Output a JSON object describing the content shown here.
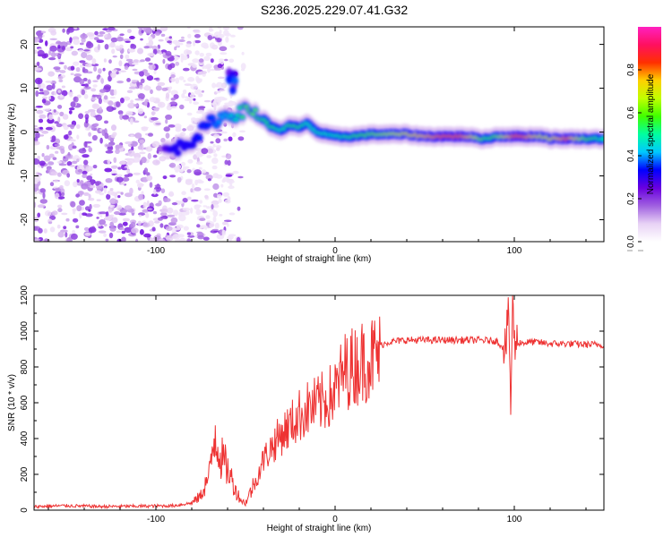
{
  "title": "S236.2025.229.07.41.G32",
  "chart_data": [
    {
      "type": "heatmap",
      "xlabel": "Height of straight line (km)",
      "ylabel": "Frequency (Hz)",
      "xlim": [
        -168,
        150
      ],
      "ylim": [
        -25,
        24
      ],
      "xticks": [
        -100,
        0,
        100
      ],
      "yticks": [
        -20,
        -10,
        0,
        10,
        20
      ],
      "ridge": {
        "x": [
          -95,
          -90,
          -85,
          -80,
          -75,
          -70,
          -65,
          -60,
          -55,
          -50,
          -45,
          -40,
          -35,
          -30,
          -25,
          -20,
          -15,
          -10,
          -5,
          0,
          10,
          20,
          30,
          40,
          50,
          60,
          70,
          75,
          80,
          85,
          90,
          95,
          100,
          105,
          110,
          115,
          120,
          130,
          140,
          150
        ],
        "y": [
          -4,
          -4,
          -3,
          -2,
          0,
          2,
          3,
          4,
          4,
          5,
          4.5,
          3,
          1,
          0.5,
          1.5,
          1,
          2,
          0,
          -0.5,
          -1,
          -1,
          -0.5,
          -0.5,
          -0.5,
          -1,
          -1,
          -1,
          -1,
          -1.5,
          -1.5,
          -1,
          -1,
          -1,
          -1,
          -1,
          -1,
          -1.5,
          -1.5,
          -1.5,
          -1.5
        ],
        "amplitude": [
          0.25,
          0.3,
          0.3,
          0.3,
          0.35,
          0.35,
          0.4,
          0.45,
          0.5,
          0.6,
          0.6,
          0.55,
          0.55,
          0.5,
          0.55,
          0.55,
          0.5,
          0.5,
          0.5,
          0.5,
          0.55,
          0.6,
          0.65,
          0.7,
          0.75,
          0.8,
          0.8,
          0.75,
          0.65,
          0.55,
          0.6,
          0.7,
          0.8,
          0.8,
          0.75,
          0.7,
          0.7,
          0.8,
          0.6,
          0.5
        ]
      },
      "blob": {
        "x": [
          -60,
          -55
        ],
        "y": [
          8,
          14
        ],
        "amplitude": 0.35
      }
    },
    {
      "type": "line",
      "xlabel": "Height of straight line (km)",
      "ylabel": "SNR (10 * v/v)",
      "xlim": [
        -168,
        150
      ],
      "ylim": [
        0,
        1200
      ],
      "xticks": [
        -100,
        0,
        100
      ],
      "yticks": [
        0,
        200,
        400,
        600,
        800,
        1000,
        1200
      ],
      "series": [
        {
          "name": "SNR",
          "color": "#ee3333",
          "x": [
            -168,
            -150,
            -130,
            -110,
            -90,
            -80,
            -75,
            -70,
            -67,
            -64,
            -61,
            -58,
            -55,
            -52,
            -50,
            -45,
            -40,
            -35,
            -30,
            -25,
            -20,
            -15,
            -10,
            -5,
            0,
            5,
            10,
            15,
            20,
            25,
            30,
            40,
            50,
            60,
            70,
            80,
            90,
            95,
            97,
            98,
            99,
            100,
            105,
            110,
            120,
            130,
            140,
            150
          ],
          "y": [
            20,
            25,
            20,
            22,
            25,
            40,
            80,
            200,
            450,
            300,
            250,
            180,
            100,
            50,
            40,
            150,
            300,
            380,
            450,
            500,
            560,
            600,
            620,
            650,
            700,
            820,
            850,
            880,
            900,
            920,
            940,
            950,
            950,
            950,
            950,
            950,
            945,
            900,
            1100,
            560,
            1150,
            940,
            935,
            940,
            930,
            930,
            925,
            925
          ]
        }
      ]
    }
  ],
  "colorbar": {
    "label": "Normalized spectral amplitude",
    "range": [
      0,
      1
    ],
    "ticks": [
      0.0,
      0.2,
      0.4,
      0.6,
      0.8
    ],
    "tick_labels": [
      "0.0",
      "0.2",
      "0.4",
      "0.6",
      "0.8"
    ],
    "stops": [
      "#ffffff",
      "#e8d2f5",
      "#a060e0",
      "#6a00e0",
      "#0000ff",
      "#00c8ff",
      "#00ffa0",
      "#40ff00",
      "#c0ff00",
      "#ffd000",
      "#ff3000",
      "#ff1060",
      "#ff20c0"
    ]
  }
}
